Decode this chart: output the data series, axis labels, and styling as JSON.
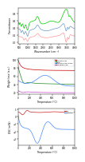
{
  "panel1": {
    "xlabel": "Wavenumber (cm⁻¹)",
    "ylabel": "Transmittance",
    "xlim": [
      400,
      4000
    ],
    "lines": [
      {
        "color": "#00cc00"
      },
      {
        "color": "#6699cc"
      },
      {
        "color": "#ff9999"
      }
    ]
  },
  "panel2": {
    "xlabel": "Temperature (°C)",
    "ylabel": "Weight loss (a.u.)",
    "xlim": [
      0,
      1000
    ],
    "legend": [
      "Clinoptilolite",
      "DMG",
      "Clinoptilolite+DMG",
      "Modified CPE"
    ],
    "legend_colors": [
      "#cc0000",
      "#228822",
      "#4488ff",
      "#cc44cc"
    ]
  },
  "panel3": {
    "xlabel": "Temperature (°C)",
    "ylabel": "DSC (mW)",
    "xlim": [
      0,
      1000
    ],
    "legend": [
      "Ni",
      "Ni-DMG"
    ],
    "legend_colors": [
      "#cc2222",
      "#4488ff"
    ]
  },
  "bg_color": "#ffffff"
}
